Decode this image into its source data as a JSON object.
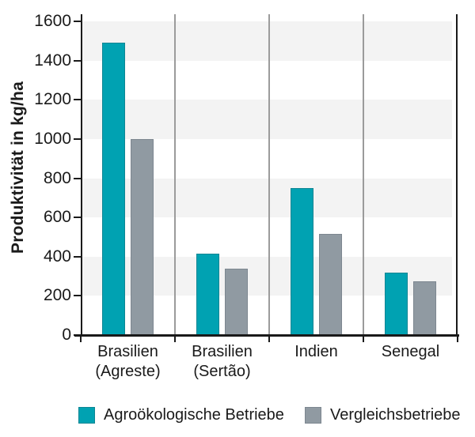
{
  "chart_data": {
    "type": "bar",
    "title": "",
    "xlabel": "",
    "ylabel": "Produktivität in kg/ha",
    "categories": [
      "Brasilien\n(Agreste)",
      "Brasilien\n(Sertão)",
      "Indien",
      "Senegal"
    ],
    "series": [
      {
        "name": "Agroökologische Betriebe",
        "color": "#00a2b2",
        "border_color": "#0d8694",
        "values": [
          1490,
          415,
          750,
          320
        ]
      },
      {
        "name": "Vergleichsbetriebe",
        "color": "#909aa2",
        "border_color": "#7d8790",
        "values": [
          1000,
          340,
          515,
          275
        ]
      }
    ],
    "ylim": [
      0,
      1600
    ],
    "ytick_step": 200,
    "yticks": [
      0,
      200,
      400,
      600,
      800,
      1000,
      1200,
      1400,
      1600
    ],
    "grid": "alternating-horizontal-bands",
    "band_color": "#f3f3f3",
    "separator_color": "#9b9b9b",
    "axis_color": "#1a1a1a",
    "legend_position": "bottom"
  }
}
